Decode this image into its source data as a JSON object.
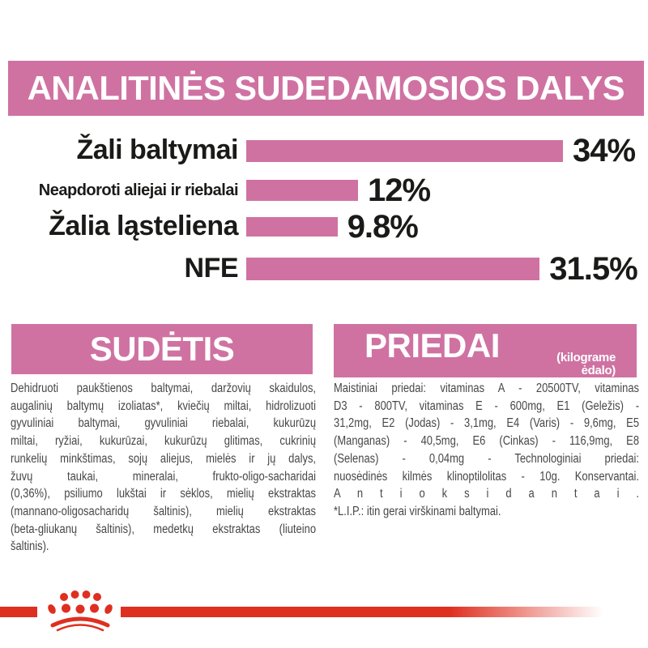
{
  "banner": {
    "title": "ANALITINĖS SUDEDAMOSIOS DALYS"
  },
  "chart_data": {
    "type": "bar",
    "orientation": "horizontal",
    "title": "ANALITINĖS SUDEDAMOSIOS DALYS",
    "categories": [
      "Žali baltymai",
      "Neapdoroti aliejai ir riebalai",
      "Žalia ląsteliena",
      "NFE"
    ],
    "values": [
      34,
      12,
      9.8,
      31.5
    ],
    "value_labels": [
      "34%",
      "12%",
      "9.8%",
      "31.5%"
    ],
    "value_suffix": "%",
    "xlim": [
      0,
      42
    ],
    "grid": false,
    "legend": false,
    "bar_color": "#cf72a2"
  },
  "sections": {
    "sudetis": {
      "header": "SUDĖTIS",
      "body_lines": [
        "Dehidruoti paukštienos baltymai, daržovių skaidulos,",
        "augalinių baltymų izoliatas*, kviečių miltai, hidrolizuoti",
        "gyvuliniai baltymai, gyvuliniai riebalai, kukurūzų",
        "miltai, ryžiai, kukurūzai, kukurūzų glitimas, cukrinių",
        "runkelių minkštimas, sojų aliejus, mielės ir jų dalys,",
        "žuvų taukai, mineralai, frukto-oligo-sacharidai",
        "(0,36%), psiliumo lukštai ir sėklos, mielių ekstraktas",
        "(mannano-oligosacharidų šaltinis), mielių ekstraktas",
        "(beta-gliukanų šaltinis), medetkų ekstraktas (liuteino",
        "šaltinis)."
      ]
    },
    "priedai": {
      "header": "PRIEDAI",
      "header_note_lines": [
        "(kilograme",
        "ėdalo)"
      ],
      "body_lines": [
        "Maistiniai priedai: vitaminas A - 20500TV, vitaminas",
        "D3 - 800TV, vitaminas E - 600mg, E1 (Geležis) -",
        "31,2mg, E2 (Jodas) - 3,1mg, E4 (Varis) - 9,6mg, E5",
        "(Manganas) - 40,5mg, E6 (Cinkas) - 116,9mg, E8",
        "(Selenas) - 0,04mg - Technologiniai priedai:",
        "nuosėdinės kilmės klinoptilolitas - 10g. Konservantai.",
        "A n t i o k s i d a n t a i .",
        "*L.I.P.: itin gerai virškinami baltymai."
      ]
    }
  },
  "footer": {
    "brand_logo": "royal-canin-crown-paw"
  },
  "colors": {
    "pink": "#cf72a2",
    "red": "#df2f20",
    "chart_text": "#1a1a18",
    "body_text": "#474747",
    "background": "#ffffff"
  }
}
